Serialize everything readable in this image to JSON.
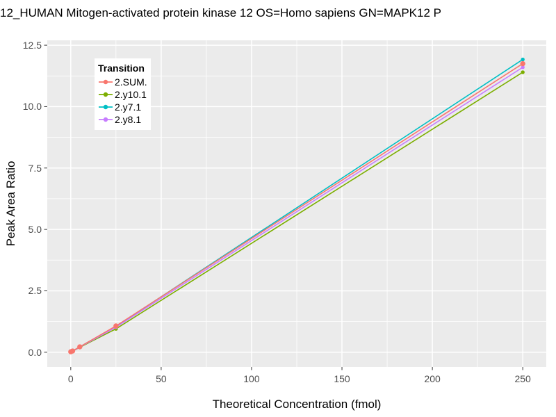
{
  "chart_data": {
    "type": "line",
    "title": "12_HUMAN Mitogen-activated protein kinase 12 OS=Homo sapiens GN=MAPK12 P",
    "xlabel": "Theoretical Concentration (fmol)",
    "ylabel": "Peak Area Ratio",
    "legend": {
      "title": "Transition",
      "position": "inside-top-left"
    },
    "grid": true,
    "x": [
      0,
      1,
      5,
      25,
      250
    ],
    "series": [
      {
        "name": "2.SUM.",
        "color": "#F8766D",
        "marker": "circle",
        "values": [
          0.02,
          0.05,
          0.22,
          1.07,
          11.75
        ]
      },
      {
        "name": "2.y10.1",
        "color": "#7CAE00",
        "marker": "circle",
        "values": [
          0.01,
          0.04,
          0.2,
          0.95,
          11.4
        ]
      },
      {
        "name": "2.y7.1",
        "color": "#00BFC4",
        "marker": "circle",
        "values": [
          0.02,
          0.05,
          0.22,
          1.05,
          11.92
        ]
      },
      {
        "name": "2.y8.1",
        "color": "#C77CFF",
        "marker": "circle",
        "values": [
          0.02,
          0.04,
          0.21,
          1.02,
          11.6
        ]
      }
    ],
    "x_ticks": [
      "0",
      "50",
      "100",
      "150",
      "200",
      "250"
    ],
    "x_tick_values": [
      0,
      50,
      100,
      150,
      200,
      250
    ],
    "y_ticks": [
      "0.0",
      "2.5",
      "5.0",
      "7.5",
      "10.0",
      "12.5"
    ],
    "y_tick_values": [
      0,
      2.5,
      5,
      7.5,
      10,
      12.5
    ],
    "xlim": [
      -13,
      263
    ],
    "ylim": [
      -0.6,
      12.7
    ],
    "style": {
      "figure_bg": "#FFFFFF",
      "panel_bg": "#EBEBEB",
      "grid_color": "#FFFFFF",
      "tick_mark_color": "#333333",
      "tick_label_color": "#4D4D4D",
      "text_color": "#000000"
    }
  }
}
